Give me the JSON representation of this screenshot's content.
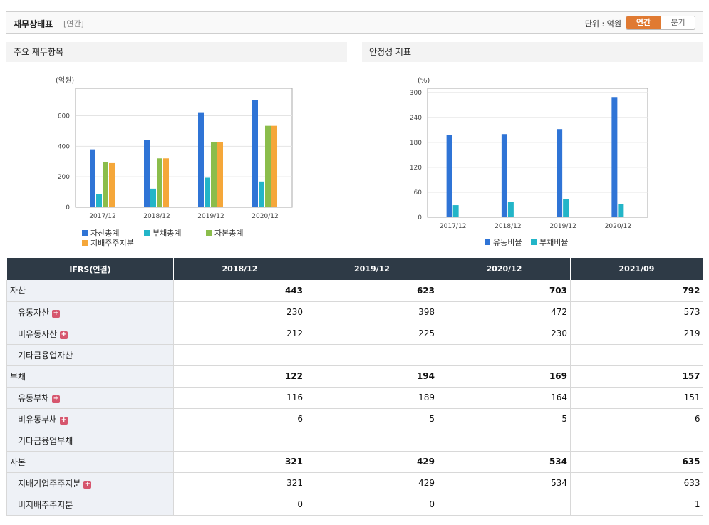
{
  "header": {
    "title": "재무상태표",
    "subtitle": "[연간]",
    "unit_label": "단위 : 억원",
    "toggle": [
      "연간",
      "분기"
    ]
  },
  "colors": {
    "blue": "#2f74d6",
    "cyan": "#23b5c8",
    "green": "#8bbd4b",
    "orange": "#f5a73a",
    "accent": "#e07a32",
    "table_header": "#2e3a46"
  },
  "panels": {
    "left_title": "주요 재무항목",
    "right_title": "안정성 지표"
  },
  "chart_data": [
    {
      "type": "bar",
      "unit_label": "(억원)",
      "categories": [
        "2017/12",
        "2018/12",
        "2019/12",
        "2020/12"
      ],
      "ylim": [
        0,
        780
      ],
      "yticks": [
        0,
        200,
        400,
        600
      ],
      "grid": true,
      "legend_position": "bottom",
      "series": [
        {
          "name": "자산총계",
          "color": "#2f74d6",
          "values": [
            380,
            443,
            623,
            703
          ]
        },
        {
          "name": "부채총계",
          "color": "#23b5c8",
          "values": [
            85,
            122,
            194,
            169
          ]
        },
        {
          "name": "자본총계",
          "color": "#8bbd4b",
          "values": [
            295,
            321,
            429,
            534
          ]
        },
        {
          "name": "지배주주지분",
          "color": "#f5a73a",
          "values": [
            290,
            321,
            429,
            534
          ]
        }
      ]
    },
    {
      "type": "bar",
      "unit_label": "(%)",
      "categories": [
        "2017/12",
        "2018/12",
        "2019/12",
        "2020/12"
      ],
      "ylim": [
        0,
        310
      ],
      "yticks": [
        0,
        60,
        120,
        180,
        240,
        300
      ],
      "grid": true,
      "legend_position": "bottom",
      "series": [
        {
          "name": "유동비율",
          "color": "#2f74d6",
          "values": [
            197,
            200,
            212,
            289
          ]
        },
        {
          "name": "부채비율",
          "color": "#23b5c8",
          "values": [
            29,
            37,
            44,
            31
          ]
        }
      ]
    }
  ],
  "table": {
    "columns": [
      "IFRS(연결)",
      "2018/12",
      "2019/12",
      "2020/12",
      "2021/09"
    ],
    "rows": [
      {
        "label": "자산",
        "level": 0,
        "bold": true,
        "expand": false,
        "values": [
          "443",
          "623",
          "703",
          "792"
        ]
      },
      {
        "label": "유동자산",
        "level": 1,
        "bold": false,
        "expand": true,
        "values": [
          "230",
          "398",
          "472",
          "573"
        ]
      },
      {
        "label": "비유동자산",
        "level": 1,
        "bold": false,
        "expand": true,
        "values": [
          "212",
          "225",
          "230",
          "219"
        ]
      },
      {
        "label": "기타금융업자산",
        "level": 1,
        "bold": false,
        "expand": false,
        "values": [
          "",
          "",
          "",
          ""
        ]
      },
      {
        "label": "부채",
        "level": 0,
        "bold": true,
        "expand": false,
        "values": [
          "122",
          "194",
          "169",
          "157"
        ]
      },
      {
        "label": "유동부채",
        "level": 1,
        "bold": false,
        "expand": true,
        "values": [
          "116",
          "189",
          "164",
          "151"
        ]
      },
      {
        "label": "비유동부채",
        "level": 1,
        "bold": false,
        "expand": true,
        "values": [
          "6",
          "5",
          "5",
          "6"
        ]
      },
      {
        "label": "기타금융업부채",
        "level": 1,
        "bold": false,
        "expand": false,
        "values": [
          "",
          "",
          "",
          ""
        ]
      },
      {
        "label": "자본",
        "level": 0,
        "bold": true,
        "expand": false,
        "values": [
          "321",
          "429",
          "534",
          "635"
        ]
      },
      {
        "label": "지배기업주주지분",
        "level": 1,
        "bold": false,
        "expand": true,
        "values": [
          "321",
          "429",
          "534",
          "633"
        ]
      },
      {
        "label": "비지배주주지분",
        "level": 1,
        "bold": false,
        "expand": false,
        "values": [
          "0",
          "0",
          "",
          "1"
        ]
      }
    ],
    "expand_icon": "plus-icon",
    "expand_glyph": "+"
  }
}
